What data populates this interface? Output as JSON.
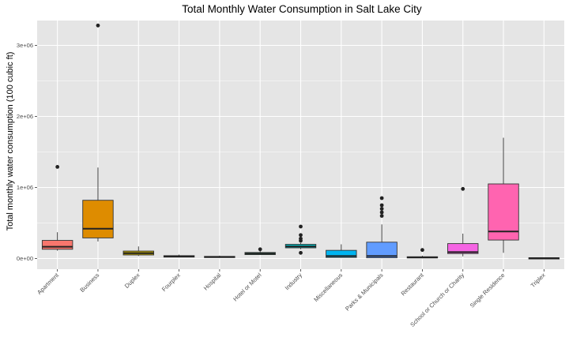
{
  "chart_data": {
    "type": "boxplot",
    "title": "Total Monthly Water Consumption in Salt Lake City",
    "xlabel": "",
    "ylabel": "Total monthly water consumption (100 cubic ft)",
    "ylim": [
      -150000,
      3350000
    ],
    "yticks": [
      0,
      1000000,
      2000000,
      3000000
    ],
    "ytick_labels": [
      "0e+00",
      "1e+06",
      "2e+06",
      "3e+06"
    ],
    "grid": true,
    "background": "#e5e5e5",
    "grid_color": "#ffffff",
    "legend": "none",
    "categories": [
      {
        "name": "Apartment",
        "color": "#f8766d",
        "min": 110000,
        "q1": 130000,
        "median": 165000,
        "q3": 255000,
        "max": 370000,
        "outliers": [
          1290000
        ]
      },
      {
        "name": "Business",
        "color": "#de8c00",
        "min": 240000,
        "q1": 290000,
        "median": 420000,
        "q3": 820000,
        "max": 1280000,
        "outliers": [
          3280000
        ]
      },
      {
        "name": "Duplex",
        "color": "#b79f00",
        "min": 35000,
        "q1": 50000,
        "median": 75000,
        "q3": 105000,
        "max": 170000,
        "outliers": []
      },
      {
        "name": "Fourplex",
        "color": "#7cae00",
        "min": 15000,
        "q1": 20000,
        "median": 30000,
        "q3": 40000,
        "max": 55000,
        "outliers": []
      },
      {
        "name": "Hospital",
        "color": "#00ba38",
        "min": 10000,
        "q1": 15000,
        "median": 22000,
        "q3": 30000,
        "max": 40000,
        "outliers": []
      },
      {
        "name": "Hotel or Motel",
        "color": "#00c08b",
        "min": 50000,
        "q1": 55000,
        "median": 70000,
        "q3": 85000,
        "max": 110000,
        "outliers": [
          130000
        ]
      },
      {
        "name": "Industry",
        "color": "#00bfc4",
        "min": 130000,
        "q1": 150000,
        "median": 170000,
        "q3": 200000,
        "max": 220000,
        "outliers": [
          80000,
          250000,
          280000,
          330000,
          450000
        ]
      },
      {
        "name": "Miscellaneous",
        "color": "#00b4f0",
        "min": 10000,
        "q1": 15000,
        "median": 35000,
        "q3": 115000,
        "max": 200000,
        "outliers": []
      },
      {
        "name": "Parks & Municipals",
        "color": "#619cff",
        "min": 5000,
        "q1": 10000,
        "median": 35000,
        "q3": 230000,
        "max": 480000,
        "outliers": [
          600000,
          650000,
          700000,
          750000,
          850000
        ]
      },
      {
        "name": "Restaurant",
        "color": "#c77cff",
        "min": 8000,
        "q1": 10000,
        "median": 15000,
        "q3": 25000,
        "max": 40000,
        "outliers": [
          120000
        ]
      },
      {
        "name": "School or Church or Charity",
        "color": "#f564e3",
        "min": 30000,
        "q1": 70000,
        "median": 90000,
        "q3": 210000,
        "max": 350000,
        "outliers": [
          980000
        ]
      },
      {
        "name": "Single Residence",
        "color": "#ff64b0",
        "min": 80000,
        "q1": 260000,
        "median": 380000,
        "q3": 1050000,
        "max": 1700000,
        "outliers": []
      },
      {
        "name": "Triplex",
        "color": "#e76bf3",
        "min": 0,
        "q1": 2000,
        "median": 5000,
        "q3": 10000,
        "max": 15000,
        "outliers": []
      }
    ]
  }
}
